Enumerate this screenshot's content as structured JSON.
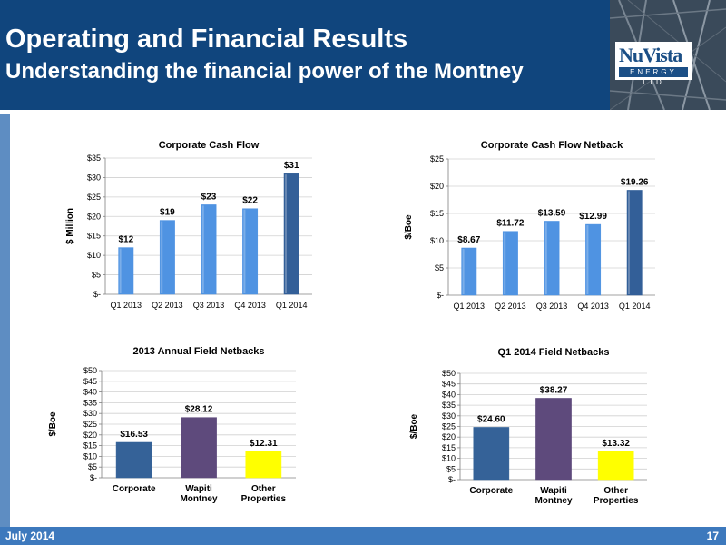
{
  "slide": {
    "title": "Operating and Financial Results",
    "subtitle": "Understanding the financial power of the Montney",
    "footer_date": "July 2014",
    "page_number": "17",
    "logo": {
      "name": "NuVista",
      "tagline": "ENERGY LTD"
    },
    "colors": {
      "header": "#10457d",
      "footer": "#3d79bd",
      "side_bar": "#5e8dc2"
    }
  },
  "chart_data": [
    {
      "type": "bar",
      "title": "Corporate Cash Flow",
      "ylabel": "$ Million",
      "categories": [
        "Q1 2013",
        "Q2 2013",
        "Q3 2013",
        "Q4 2013",
        "Q1 2014"
      ],
      "values": [
        12,
        19,
        23,
        22,
        31
      ],
      "value_labels": [
        "$12",
        "$19",
        "$23",
        "$22",
        "$31"
      ],
      "ylim": [
        0,
        35
      ],
      "ytick_values": [
        0,
        5,
        10,
        15,
        20,
        25,
        30,
        35
      ],
      "ytick_labels": [
        "$-",
        "$5",
        "$10",
        "$15",
        "$20",
        "$25",
        "$30",
        "$35"
      ],
      "bar_colors": [
        "#4f93e2",
        "#4f93e2",
        "#4f93e2",
        "#4f93e2",
        "#335f98"
      ],
      "grid": true
    },
    {
      "type": "bar",
      "title": "Corporate Cash Flow Netback",
      "ylabel": "$/Boe",
      "categories": [
        "Q1 2013",
        "Q2 2013",
        "Q3 2013",
        "Q4 2013",
        "Q1 2014"
      ],
      "values": [
        8.67,
        11.72,
        13.59,
        12.99,
        19.26
      ],
      "value_labels": [
        "$8.67",
        "$11.72",
        "$13.59",
        "$12.99",
        "$19.26"
      ],
      "ylim": [
        0,
        25
      ],
      "ytick_values": [
        0,
        5,
        10,
        15,
        20,
        25
      ],
      "ytick_labels": [
        "$-",
        "$5",
        "$10",
        "$15",
        "$20",
        "$25"
      ],
      "bar_colors": [
        "#4f93e2",
        "#4f93e2",
        "#4f93e2",
        "#4f93e2",
        "#335f98"
      ],
      "grid": true
    },
    {
      "type": "bar",
      "title": "2013 Annual Field Netbacks",
      "ylabel": "$/Boe",
      "categories": [
        [
          "Corporate"
        ],
        [
          "Wapiti",
          "Montney"
        ],
        [
          "Other",
          "Properties"
        ]
      ],
      "values": [
        16.53,
        28.12,
        12.31
      ],
      "value_labels": [
        "$16.53",
        "$28.12",
        "$12.31"
      ],
      "ylim": [
        0,
        50
      ],
      "ytick_values": [
        0,
        5,
        10,
        15,
        20,
        25,
        30,
        35,
        40,
        45,
        50
      ],
      "ytick_labels": [
        "$-",
        "$5",
        "$10",
        "$15",
        "$20",
        "$25",
        "$30",
        "$35",
        "$40",
        "$45",
        "$50"
      ],
      "bar_colors": [
        "#356298",
        "#5e4a7c",
        "#ffff00"
      ],
      "grid": true
    },
    {
      "type": "bar",
      "title": "Q1  2014 Field Netbacks",
      "ylabel": "$/Boe",
      "categories": [
        [
          "Corporate"
        ],
        [
          "Wapiti",
          "Montney"
        ],
        [
          "Other",
          "Properties"
        ]
      ],
      "values": [
        24.6,
        38.27,
        13.32
      ],
      "value_labels": [
        "$24.60",
        "$38.27",
        "$13.32"
      ],
      "ylim": [
        0,
        50
      ],
      "ytick_values": [
        0,
        5,
        10,
        15,
        20,
        25,
        30,
        35,
        40,
        45,
        50
      ],
      "ytick_labels": [
        "$-",
        "$5",
        "$10",
        "$15",
        "$20",
        "$25",
        "$30",
        "$35",
        "$40",
        "$45",
        "$50"
      ],
      "bar_colors": [
        "#356298",
        "#5e4a7c",
        "#ffff00"
      ],
      "grid": true
    }
  ]
}
